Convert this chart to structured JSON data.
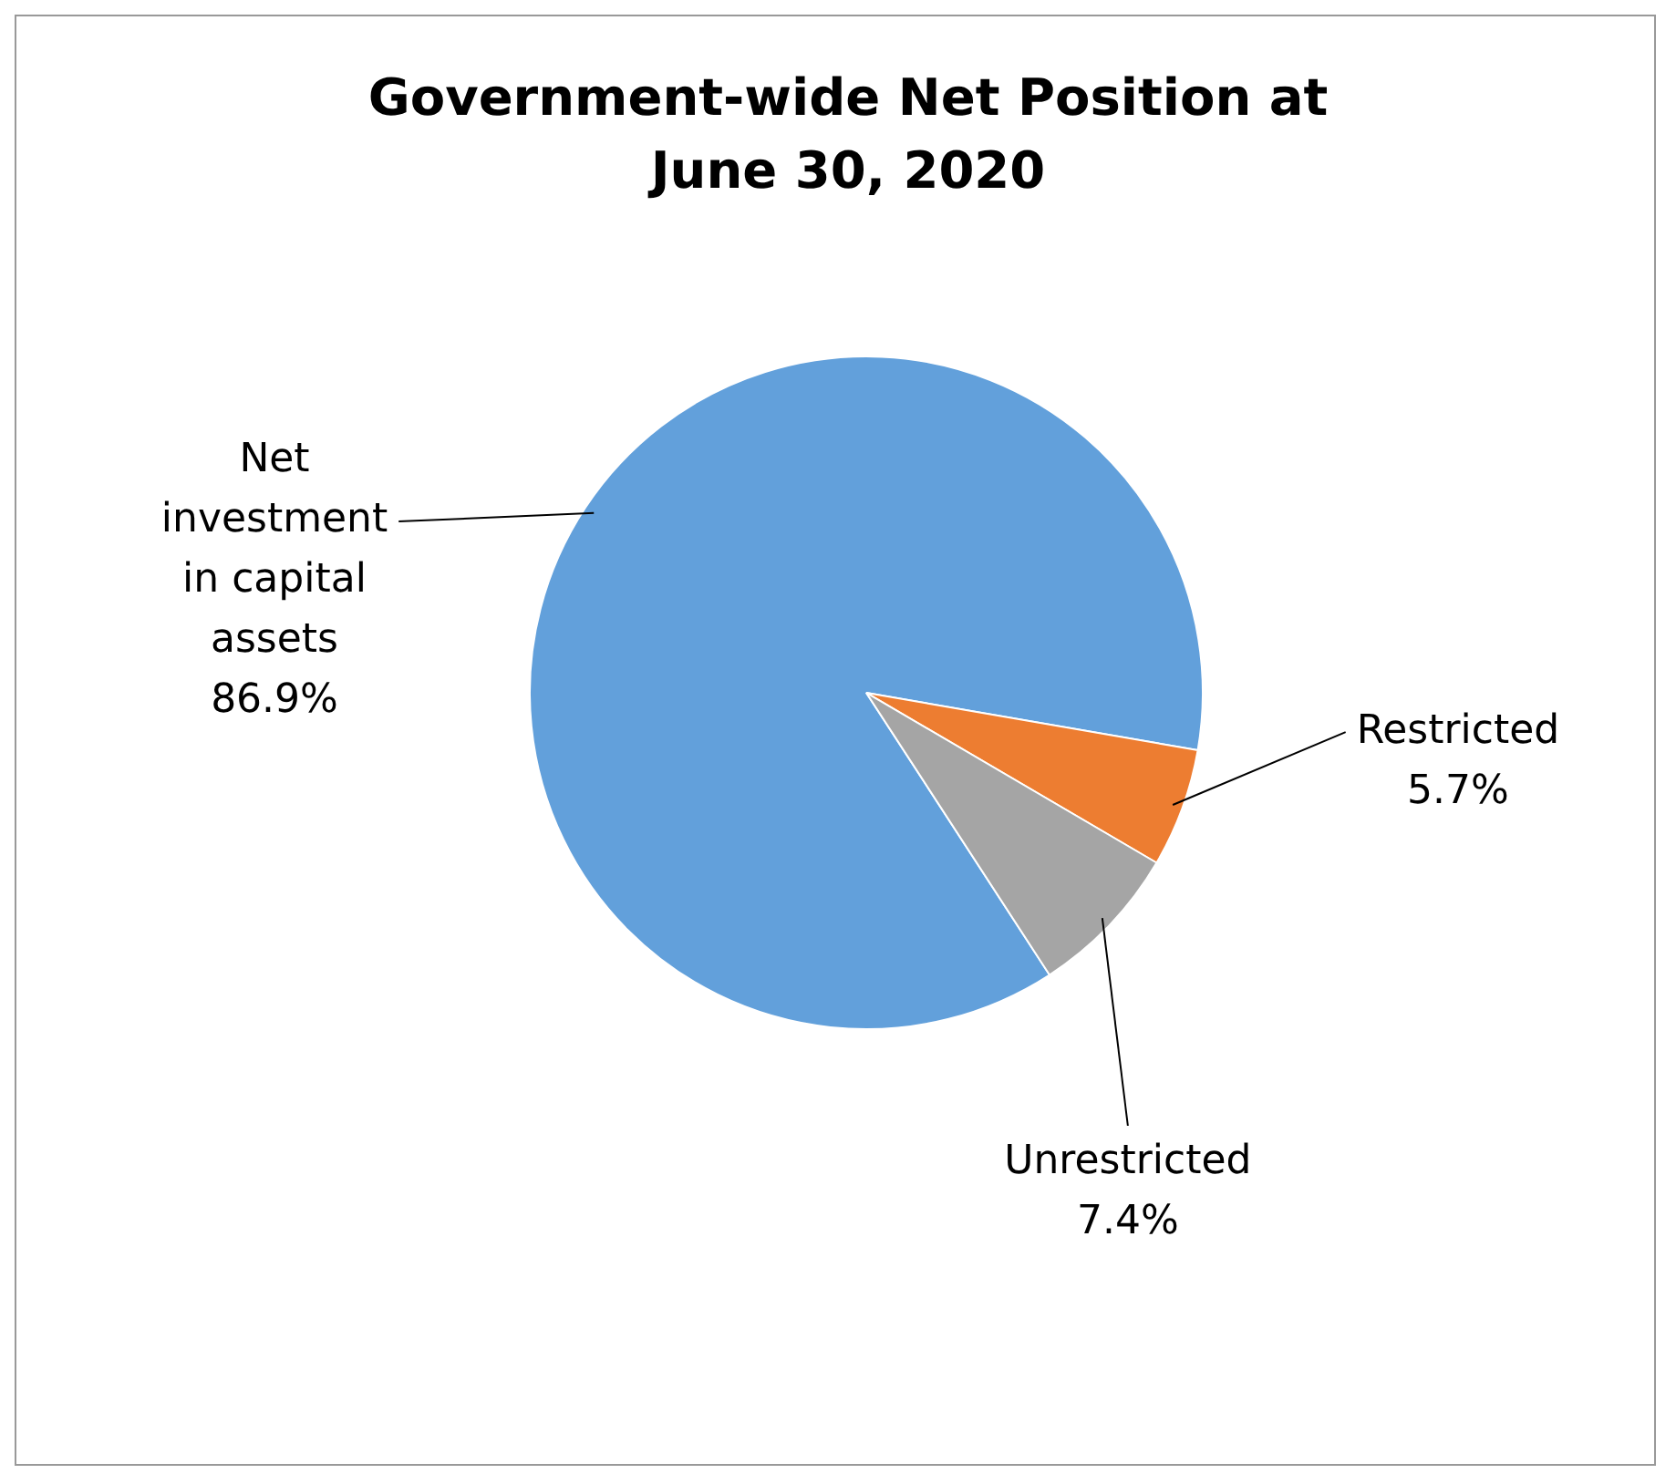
{
  "chart_data": {
    "type": "pie",
    "title": "Government-wide Net Position at June 30, 2020",
    "categories": [
      "Net investment in capital assets",
      "Restricted",
      "Unrestricted"
    ],
    "values": [
      86.9,
      5.7,
      7.4
    ],
    "colors": [
      "#62a0db",
      "#ed7d31",
      "#a5a5a5"
    ],
    "value_labels": [
      "86.9%",
      "5.7%",
      "7.4%"
    ],
    "legend": false
  }
}
